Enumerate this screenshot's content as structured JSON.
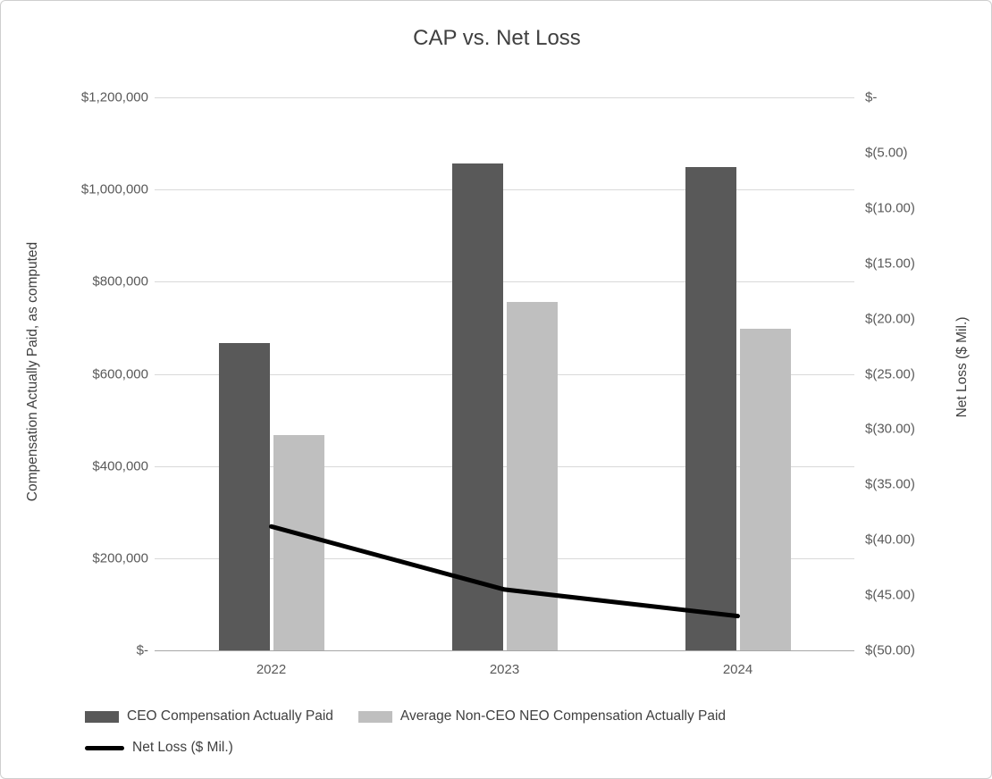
{
  "chart_data": {
    "type": "bar",
    "subtype": "combo-bar-line",
    "title": "CAP vs. Net Loss",
    "categories": [
      "2022",
      "2023",
      "2024"
    ],
    "bar_series": [
      {
        "name": "CEO Compensation Actually Paid",
        "color": "#595959",
        "values": [
          667000,
          1057000,
          1049000
        ]
      },
      {
        "name": "Average Non-CEO NEO Compensation Actually Paid",
        "color": "#bfbfbf",
        "values": [
          468000,
          756000,
          698000
        ]
      }
    ],
    "line_series": {
      "name": "Net Loss ($ Mil.)",
      "color": "#000000",
      "axis": "right",
      "values": [
        -38.8,
        -44.5,
        -46.9
      ]
    },
    "left_axis": {
      "label": "Compensation Actually Paid, as computed",
      "min": 0,
      "max": 1200000,
      "ticks": [
        {
          "value": 0,
          "label": "$-"
        },
        {
          "value": 200000,
          "label": "$200,000"
        },
        {
          "value": 400000,
          "label": "$400,000"
        },
        {
          "value": 600000,
          "label": "$600,000"
        },
        {
          "value": 800000,
          "label": "$800,000"
        },
        {
          "value": 1000000,
          "label": "$1,000,000"
        },
        {
          "value": 1200000,
          "label": "$1,200,000"
        }
      ]
    },
    "right_axis": {
      "label": "Net Loss ($ Mil.)",
      "min": -50,
      "max": 0,
      "ticks": [
        {
          "value": 0,
          "label": "$-"
        },
        {
          "value": -5,
          "label": "$(5.00)"
        },
        {
          "value": -10,
          "label": "$(10.00)"
        },
        {
          "value": -15,
          "label": "$(15.00)"
        },
        {
          "value": -20,
          "label": "$(20.00)"
        },
        {
          "value": -25,
          "label": "$(25.00)"
        },
        {
          "value": -30,
          "label": "$(30.00)"
        },
        {
          "value": -35,
          "label": "$(35.00)"
        },
        {
          "value": -40,
          "label": "$(40.00)"
        },
        {
          "value": -45,
          "label": "$(45.00)"
        },
        {
          "value": -50,
          "label": "$(50.00)"
        }
      ]
    },
    "grid": true,
    "legend_position": "bottom-left"
  }
}
